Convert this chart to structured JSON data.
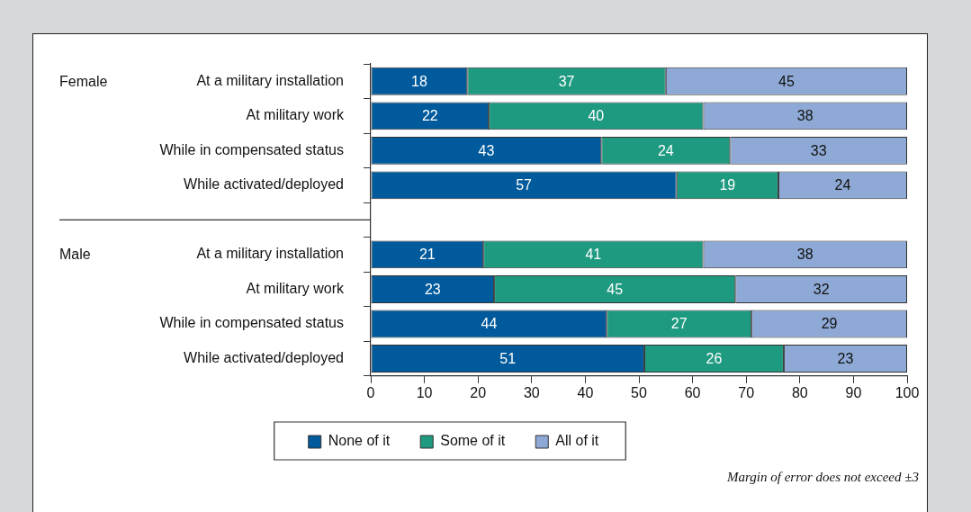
{
  "chart_data": {
    "type": "bar",
    "orientation": "horizontal",
    "stacked": true,
    "categories": [
      "At a military installation",
      "At military work",
      "While in compensated status",
      "While activated/deployed",
      null,
      "At a military installation",
      "At military work",
      "While in compensated status",
      "While activated/deployed"
    ],
    "series": [
      {
        "name": "None of it",
        "color": "#005a9c",
        "values": [
          18,
          22,
          43,
          57,
          null,
          21,
          23,
          44,
          51
        ]
      },
      {
        "name": "Some of it",
        "color": "#1e9a80",
        "values": [
          37,
          40,
          24,
          19,
          null,
          41,
          45,
          27,
          26
        ]
      },
      {
        "name": "All of it",
        "color": "#8ea9d5",
        "values": [
          45,
          38,
          33,
          24,
          null,
          38,
          32,
          29,
          23
        ]
      }
    ],
    "xlim": [
      0,
      100
    ],
    "xticks": [
      0,
      10,
      20,
      30,
      40,
      50,
      60,
      70,
      80,
      90,
      100
    ],
    "grid": false,
    "legend": "bottom",
    "data_labels": true,
    "annotations": [
      "Female",
      "Male",
      "Margin of error does not exceed ±3"
    ]
  }
}
